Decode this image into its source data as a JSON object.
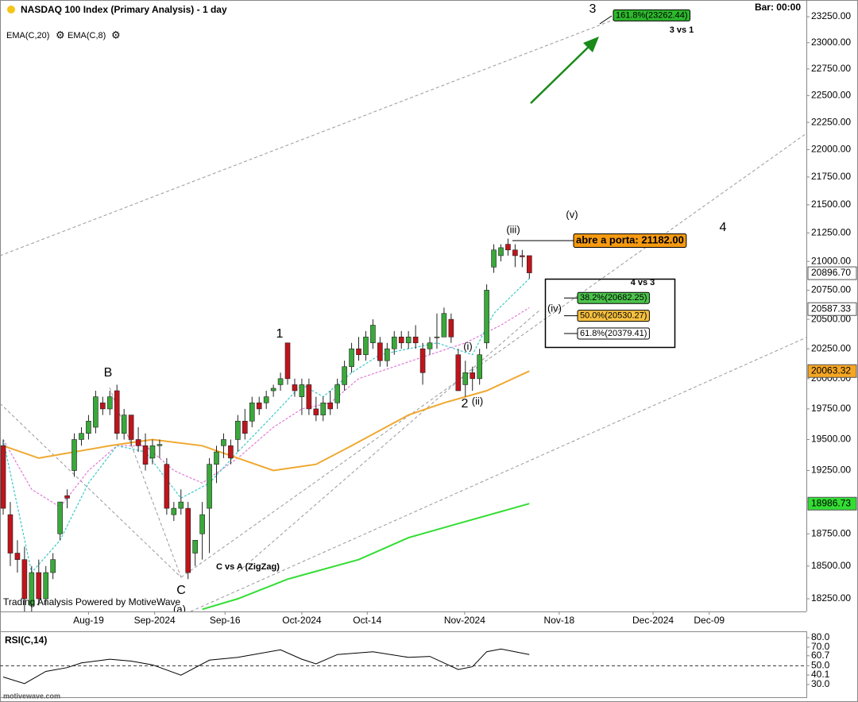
{
  "bar_label": "Bar: 00:00",
  "credit": "Trading Analysis Powered by MotiveWave",
  "watermark": "motivewave.com",
  "chart_data": [
    {
      "type": "candlestick",
      "title": "NASDAQ 100 Index (Primary Analysis) - 1 day",
      "log": true,
      "up_color": "#3aa83a",
      "down_color": "#c0141c",
      "xlim": [
        -0.45,
        112.96
      ],
      "ylim": [
        18154,
        23412
      ],
      "xticks": [
        {
          "value": 12,
          "label": "Aug-19"
        },
        {
          "value": 21.3,
          "label": "Sep-2024"
        },
        {
          "value": 31.2,
          "label": "Sep-16"
        },
        {
          "value": 42,
          "label": "Oct-2024"
        },
        {
          "value": 51.2,
          "label": "Oct-14"
        },
        {
          "value": 64.9,
          "label": "Nov-2024"
        },
        {
          "value": 78.2,
          "label": "Nov-18"
        },
        {
          "value": 91.4,
          "label": "Dec-2024"
        },
        {
          "value": 99.3,
          "label": "Dec-09"
        }
      ],
      "yticks": [
        {
          "value": 18250,
          "label": "18250.00"
        },
        {
          "value": 18500,
          "label": "18500.00"
        },
        {
          "value": 18750,
          "label": "18750.00"
        },
        {
          "value": 19000,
          "label": "19000.00"
        },
        {
          "value": 19250,
          "label": "19250.00"
        },
        {
          "value": 19500,
          "label": "19500.00"
        },
        {
          "value": 19750,
          "label": "19750.00"
        },
        {
          "value": 20000,
          "label": "20000.00"
        },
        {
          "value": 20250,
          "label": "20250.00"
        },
        {
          "value": 20500,
          "label": "20500.00"
        },
        {
          "value": 20750,
          "label": "20750.00"
        },
        {
          "value": 21000,
          "label": "21000.00"
        },
        {
          "value": 21250,
          "label": "21250.00"
        },
        {
          "value": 21500,
          "label": "21500.00"
        },
        {
          "value": 21750,
          "label": "21750.00"
        },
        {
          "value": 22000,
          "label": "22000.00"
        },
        {
          "value": 22250,
          "label": "22250.00"
        },
        {
          "value": 22500,
          "label": "22500.00"
        },
        {
          "value": 22750,
          "label": "22750.00"
        },
        {
          "value": 23000,
          "label": "23000.00"
        },
        {
          "value": 23250,
          "label": "23250.00"
        }
      ],
      "x": [
        0,
        1,
        2,
        3,
        4,
        5,
        6,
        7,
        8,
        9,
        10,
        11,
        12,
        13,
        14,
        15,
        16,
        17,
        18,
        19,
        20,
        21,
        22,
        23,
        24,
        25,
        26,
        27,
        28,
        29,
        30,
        31,
        32,
        33,
        34,
        35,
        36,
        37,
        38,
        39,
        40,
        41,
        42,
        43,
        44,
        45,
        46,
        47,
        48,
        49,
        50,
        51,
        52,
        53,
        54,
        55,
        56,
        57,
        58,
        59,
        60,
        61,
        62,
        63,
        64,
        65,
        66,
        67,
        68,
        69,
        70,
        71,
        72,
        73,
        74
      ],
      "open": [
        19450,
        18900,
        18600,
        18550,
        18200,
        18450,
        18250,
        18450,
        18750,
        19050,
        19250,
        19500,
        19550,
        19600,
        19800,
        19750,
        19900,
        19550,
        19700,
        19500,
        19450,
        19350,
        19450,
        19300,
        18900,
        18950,
        18950,
        18600,
        18750,
        18950,
        19300,
        19450,
        19450,
        19500,
        19650,
        19650,
        19800,
        19800,
        19900,
        19950,
        20300,
        19950,
        19850,
        19950,
        19750,
        19700,
        19800,
        19800,
        19950,
        20100,
        20250,
        20200,
        20300,
        20300,
        20150,
        20250,
        20350,
        20300,
        20350,
        20250,
        20250,
        20350,
        20350,
        20500,
        20200,
        19950,
        20050,
        20000,
        20300,
        20950,
        21050,
        21150,
        21100,
        21050,
        21050
      ],
      "high": [
        19500,
        19000,
        18700,
        18650,
        18500,
        18550,
        18500,
        18600,
        19000,
        19100,
        19550,
        19600,
        19700,
        19900,
        19850,
        19900,
        19950,
        19750,
        19700,
        19600,
        19550,
        19500,
        19500,
        19350,
        19000,
        19100,
        19000,
        18700,
        19000,
        19350,
        19450,
        19550,
        19500,
        19700,
        19750,
        19850,
        19850,
        19900,
        19950,
        20050,
        20300,
        20000,
        20000,
        20000,
        19850,
        19850,
        19900,
        20000,
        20150,
        20300,
        20350,
        20400,
        20500,
        20350,
        20300,
        20400,
        20400,
        20400,
        20450,
        20300,
        20350,
        20550,
        20600,
        20550,
        20250,
        20150,
        20100,
        20250,
        20800,
        21150,
        21150,
        21200,
        21150,
        21100,
        21050
      ],
      "low": [
        18900,
        18500,
        18450,
        18150,
        18150,
        18200,
        18200,
        18400,
        18700,
        18950,
        19200,
        19450,
        19500,
        19550,
        19700,
        19700,
        19500,
        19500,
        19450,
        19400,
        19250,
        19300,
        19350,
        18900,
        18850,
        18900,
        18400,
        18500,
        18550,
        18600,
        19150,
        19350,
        19300,
        19400,
        19500,
        19600,
        19700,
        19750,
        19850,
        19900,
        19950,
        19850,
        19700,
        19700,
        19650,
        19650,
        19700,
        19750,
        19900,
        20050,
        20150,
        20150,
        20250,
        20100,
        20100,
        20200,
        20250,
        20250,
        20250,
        19950,
        20200,
        20250,
        20350,
        20300,
        19900,
        19850,
        19900,
        19950,
        20250,
        20900,
        21000,
        21050,
        20950,
        20950,
        20850
      ],
      "close": [
        18950,
        18600,
        18550,
        18250,
        18450,
        18250,
        18450,
        18550,
        19000,
        19030,
        19500,
        19550,
        19650,
        19850,
        19750,
        19850,
        19550,
        19700,
        19500,
        19450,
        19300,
        19450,
        19460,
        18950,
        18950,
        19000,
        18450,
        18700,
        18900,
        19300,
        19400,
        19500,
        19350,
        19650,
        19550,
        19800,
        19750,
        19850,
        19920,
        20000,
        20000,
        19900,
        19950,
        19750,
        19700,
        19800,
        19750,
        19950,
        20100,
        20250,
        20200,
        20350,
        20450,
        20150,
        20250,
        20350,
        20300,
        20350,
        20300,
        20050,
        20300,
        20350,
        20550,
        20350,
        19900,
        20050,
        20000,
        20200,
        20750,
        21100,
        21120,
        21100,
        21050,
        21040,
        20900
      ],
      "series": [
        {
          "name": "EMA(C,20)",
          "color": "#e07ad8",
          "x": [
            0,
            4,
            8,
            12,
            16,
            20,
            24,
            28,
            33,
            38,
            42,
            46,
            50,
            55,
            60,
            65,
            70,
            74
          ],
          "values": [
            19500,
            19100,
            18960,
            19250,
            19450,
            19450,
            19250,
            19150,
            19350,
            19600,
            19750,
            19800,
            20000,
            20100,
            20200,
            20300,
            20450,
            20600
          ]
        },
        {
          "name": "EMA(C,8)",
          "color": "#3cc8c8",
          "x": [
            0,
            4,
            8,
            12,
            16,
            20,
            25,
            29,
            33,
            38,
            42,
            45,
            49,
            53,
            57,
            61,
            66,
            69,
            74
          ],
          "values": [
            19500,
            18450,
            18700,
            19150,
            19450,
            19400,
            19030,
            19150,
            19400,
            19700,
            19950,
            19850,
            20050,
            20200,
            20250,
            20300,
            20200,
            20550,
            20850
          ]
        },
        {
          "color": "#f0a830",
          "x": [
            0,
            5,
            15,
            21,
            28,
            38,
            44,
            49,
            57,
            62,
            68,
            74
          ],
          "values": [
            19450,
            19350,
            19450,
            19500,
            19450,
            19250,
            19300,
            19450,
            19700,
            19800,
            19900,
            20063.32
          ]
        },
        {
          "color": "#33dd33",
          "x": [
            28,
            33,
            40,
            50,
            57,
            64,
            74
          ],
          "values": [
            18170,
            18250,
            18400,
            18550,
            18720,
            18830,
            18986.73
          ]
        }
      ],
      "price_markers": [
        {
          "value": 20896.7,
          "label": "20896.70",
          "color": "#ffffff"
        },
        {
          "value": 20587.33,
          "label": "20587.33",
          "color": "#ffffff"
        },
        {
          "value": 20063.32,
          "label": "20063.32",
          "color": "#f5a623"
        },
        {
          "value": 18986.73,
          "label": "18986.73",
          "color": "#33dd33"
        }
      ],
      "fib_levels": [
        {
          "value": 23262.44,
          "label": "161.8%(23262.44)",
          "color": "#2db82d"
        },
        {
          "value": 21182.0,
          "label": "abre a porta: 21182.00",
          "color": "#f59a12"
        },
        {
          "value": 20682.25,
          "label": "38.2%(20682.25)",
          "color": "#4cc44c"
        },
        {
          "value": 20530.27,
          "label": "50.0%(20530.27)",
          "color": "#f5c040"
        },
        {
          "value": 20379.41,
          "label": "61.8%(20379.41)",
          "color": "#ffffff"
        }
      ],
      "annotations": [
        "3",
        "3 vs 1",
        "4",
        "(v)",
        "(iii)",
        "4 vs 3",
        "(iv)",
        "1",
        "(i)",
        "2",
        "(ii)",
        "B",
        "C",
        "(a)",
        "C vs A (ZigZag)"
      ]
    },
    {
      "type": "line",
      "title": "RSI(C,14)",
      "xlim": [
        -0.45,
        112.96
      ],
      "ylim": [
        16.4,
        86.8
      ],
      "yticks": [
        {
          "value": 30,
          "label": "30.0"
        },
        40.1,
        {
          "value": 50,
          "label": "50.0"
        },
        60.7,
        {
          "value": 70,
          "label": "70.0"
        },
        {
          "value": 80,
          "label": "80.0"
        }
      ],
      "series": [
        {
          "color": "#000000",
          "x": [
            0,
            3,
            6,
            9,
            11,
            15,
            18,
            21,
            25,
            29,
            33,
            39,
            42,
            44,
            47,
            52,
            57,
            60,
            64,
            66,
            68,
            70,
            74
          ],
          "values": [
            38,
            31,
            44,
            48,
            53,
            57,
            55,
            51,
            40,
            56,
            59,
            67,
            57,
            52,
            62,
            65,
            59,
            60,
            46,
            49,
            65,
            68,
            62
          ]
        }
      ]
    }
  ]
}
